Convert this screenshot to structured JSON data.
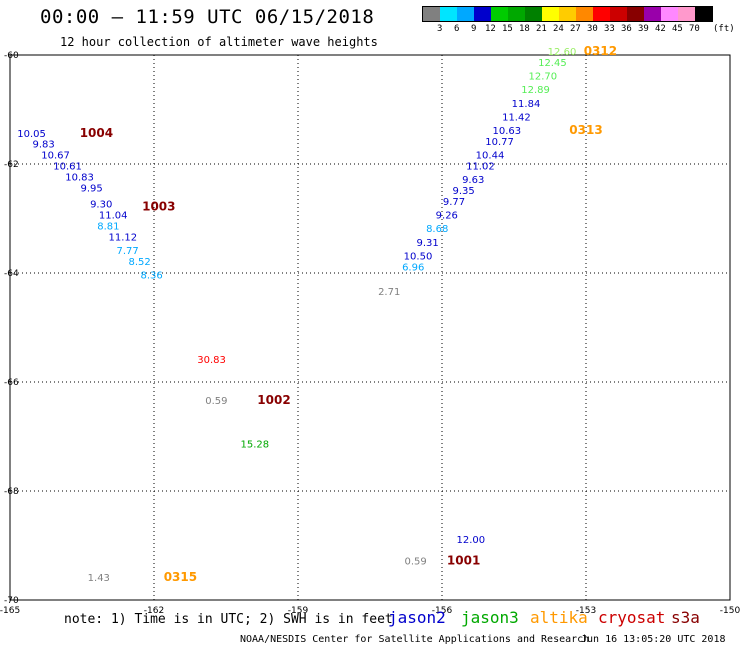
{
  "header": {
    "title": "00:00 – 11:59 UTC 06/15/2018",
    "subtitle": "12 hour collection of altimeter wave heights"
  },
  "legend": {
    "unit": "(ft)",
    "colors": [
      "#808080",
      "#00e5ff",
      "#00a8ff",
      "#0000cc",
      "#00cc00",
      "#00a800",
      "#008000",
      "#ffff00",
      "#ffcc00",
      "#ff8800",
      "#ff0000",
      "#cc0000",
      "#880000",
      "#9900aa",
      "#ff88ff",
      "#ff99cc",
      "#000000"
    ],
    "labels": [
      "3",
      "6",
      "9",
      "12",
      "15",
      "18",
      "21",
      "24",
      "27",
      "30",
      "33",
      "36",
      "39",
      "42",
      "45",
      "70"
    ]
  },
  "chart_data": {
    "type": "scatter",
    "x_ticks": [
      "-165",
      "-162",
      "-159",
      "-156",
      "-153",
      "-150"
    ],
    "y_ticks": [
      "-60",
      "-62",
      "-64",
      "-66",
      "-68",
      "-70"
    ],
    "xlim": [
      -165,
      -150
    ],
    "ylim": [
      -70,
      -60
    ],
    "grid": true,
    "storms": [
      {
        "id": "1004",
        "lon": -163.2,
        "lat": -61.5,
        "color": "#880000"
      },
      {
        "id": "1003",
        "lon": -161.9,
        "lat": -62.85,
        "color": "#880000"
      },
      {
        "id": "1002",
        "lon": -159.5,
        "lat": -66.4,
        "color": "#880000"
      },
      {
        "id": "1001",
        "lon": -155.55,
        "lat": -69.35,
        "color": "#880000"
      },
      {
        "id": "0312",
        "lon": -152.7,
        "lat": -60.0,
        "color": "#ff9900"
      },
      {
        "id": "0313",
        "lon": -153.0,
        "lat": -61.45,
        "color": "#ff9900"
      },
      {
        "id": "0315",
        "lon": -161.45,
        "lat": -69.65,
        "color": "#ff9900"
      }
    ],
    "points": [
      {
        "lon": -164.55,
        "lat": -61.5,
        "value": "10.05",
        "color": "#0000cc"
      },
      {
        "lon": -164.3,
        "lat": -61.7,
        "value": "9.83",
        "color": "#0000cc"
      },
      {
        "lon": -164.05,
        "lat": -61.9,
        "value": "10.67",
        "color": "#0000cc"
      },
      {
        "lon": -163.8,
        "lat": -62.1,
        "value": "10.61",
        "color": "#0000cc"
      },
      {
        "lon": -163.55,
        "lat": -62.3,
        "value": "10.83",
        "color": "#0000cc"
      },
      {
        "lon": -163.3,
        "lat": -62.5,
        "value": "9.95",
        "color": "#0000cc"
      },
      {
        "lon": -163.1,
        "lat": -62.8,
        "value": "9.30",
        "color": "#0000cc"
      },
      {
        "lon": -162.85,
        "lat": -63.0,
        "value": "11.04",
        "color": "#0000cc"
      },
      {
        "lon": -162.95,
        "lat": -63.2,
        "value": "8.81",
        "color": "#00a8ff"
      },
      {
        "lon": -162.65,
        "lat": -63.4,
        "value": "11.12",
        "color": "#0000cc"
      },
      {
        "lon": -162.55,
        "lat": -63.65,
        "value": "7.77",
        "color": "#00a8ff"
      },
      {
        "lon": -162.3,
        "lat": -63.85,
        "value": "8.52",
        "color": "#00a8ff"
      },
      {
        "lon": -162.05,
        "lat": -64.1,
        "value": "8.36",
        "color": "#00a8ff"
      },
      {
        "lon": -160.8,
        "lat": -65.65,
        "value": "30.83",
        "color": "#ff0000"
      },
      {
        "lon": -160.7,
        "lat": -66.4,
        "value": "0.59",
        "color": "#808080"
      },
      {
        "lon": -159.9,
        "lat": -67.2,
        "value": "15.28",
        "color": "#00a800"
      },
      {
        "lon": -157.1,
        "lat": -64.4,
        "value": "2.71",
        "color": "#808080"
      },
      {
        "lon": -156.6,
        "lat": -63.95,
        "value": "6.96",
        "color": "#00a8ff"
      },
      {
        "lon": -156.5,
        "lat": -63.75,
        "value": "10.50",
        "color": "#0000cc"
      },
      {
        "lon": -156.3,
        "lat": -63.5,
        "value": "9.31",
        "color": "#0000cc"
      },
      {
        "lon": -156.1,
        "lat": -63.25,
        "value": "8.68",
        "color": "#00a8ff"
      },
      {
        "lon": -155.9,
        "lat": -63.0,
        "value": "9.26",
        "color": "#0000cc"
      },
      {
        "lon": -155.75,
        "lat": -62.75,
        "value": "9.77",
        "color": "#0000cc"
      },
      {
        "lon": -155.55,
        "lat": -62.55,
        "value": "9.35",
        "color": "#0000cc"
      },
      {
        "lon": -155.35,
        "lat": -62.35,
        "value": "9.63",
        "color": "#0000cc"
      },
      {
        "lon": -155.2,
        "lat": -62.1,
        "value": "11.02",
        "color": "#0000cc"
      },
      {
        "lon": -155.0,
        "lat": -61.9,
        "value": "10.44",
        "color": "#0000cc"
      },
      {
        "lon": -154.8,
        "lat": -61.65,
        "value": "10.77",
        "color": "#0000cc"
      },
      {
        "lon": -154.65,
        "lat": -61.45,
        "value": "10.63",
        "color": "#0000cc"
      },
      {
        "lon": -154.45,
        "lat": -61.2,
        "value": "11.42",
        "color": "#0000cc"
      },
      {
        "lon": -154.25,
        "lat": -60.95,
        "value": "11.84",
        "color": "#0000cc"
      },
      {
        "lon": -154.05,
        "lat": -60.7,
        "value": "12.89",
        "color": "#55ee55"
      },
      {
        "lon": -153.9,
        "lat": -60.45,
        "value": "12.70",
        "color": "#55ee55"
      },
      {
        "lon": -153.7,
        "lat": -60.2,
        "value": "12.45",
        "color": "#55ee55"
      },
      {
        "lon": -153.5,
        "lat": -60.0,
        "value": "12.60",
        "color": "#99ee66"
      },
      {
        "lon": -155.4,
        "lat": -68.95,
        "value": "12.00",
        "color": "#0000cc"
      },
      {
        "lon": -156.55,
        "lat": -69.35,
        "value": "0.59",
        "color": "#808080"
      },
      {
        "lon": -163.15,
        "lat": -69.65,
        "value": "1.43",
        "color": "#808080"
      }
    ]
  },
  "notes": {
    "text": "note: 1) Time is in UTC; 2) SWH is in feet"
  },
  "satellites": [
    {
      "name": "jason2",
      "color": "#0000cc"
    },
    {
      "name": "jason3",
      "color": "#00a800"
    },
    {
      "name": "altika",
      "color": "#ff9900"
    },
    {
      "name": "cryosat",
      "color": "#cc0000"
    },
    {
      "name": "s3a",
      "color": "#880000"
    }
  ],
  "footer": {
    "credit": "NOAA/NESDIS Center for Satellite Applications and Research",
    "timestamp": "Jun 16 13:05:20 UTC 2018"
  }
}
